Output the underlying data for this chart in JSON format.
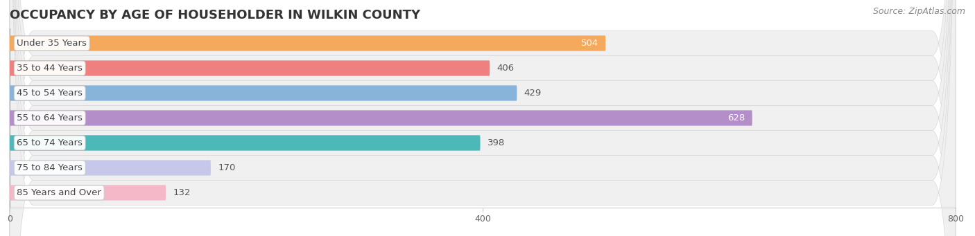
{
  "title": "OCCUPANCY BY AGE OF HOUSEHOLDER IN WILKIN COUNTY",
  "source": "Source: ZipAtlas.com",
  "categories": [
    "Under 35 Years",
    "35 to 44 Years",
    "45 to 54 Years",
    "55 to 64 Years",
    "65 to 74 Years",
    "75 to 84 Years",
    "85 Years and Over"
  ],
  "values": [
    504,
    406,
    429,
    628,
    398,
    170,
    132
  ],
  "bar_colors": [
    "#f5a95c",
    "#f08080",
    "#89b4d9",
    "#b48ec8",
    "#4db8b8",
    "#c5c8e8",
    "#f5b8c8"
  ],
  "xlim": [
    0,
    800
  ],
  "xticks": [
    0,
    400,
    800
  ],
  "title_fontsize": 13,
  "label_fontsize": 9.5,
  "value_fontsize": 9.5,
  "source_fontsize": 9,
  "background_color": "#ffffff",
  "bar_height": 0.62,
  "rounding_size": 0.25,
  "row_rounding_size": 20
}
